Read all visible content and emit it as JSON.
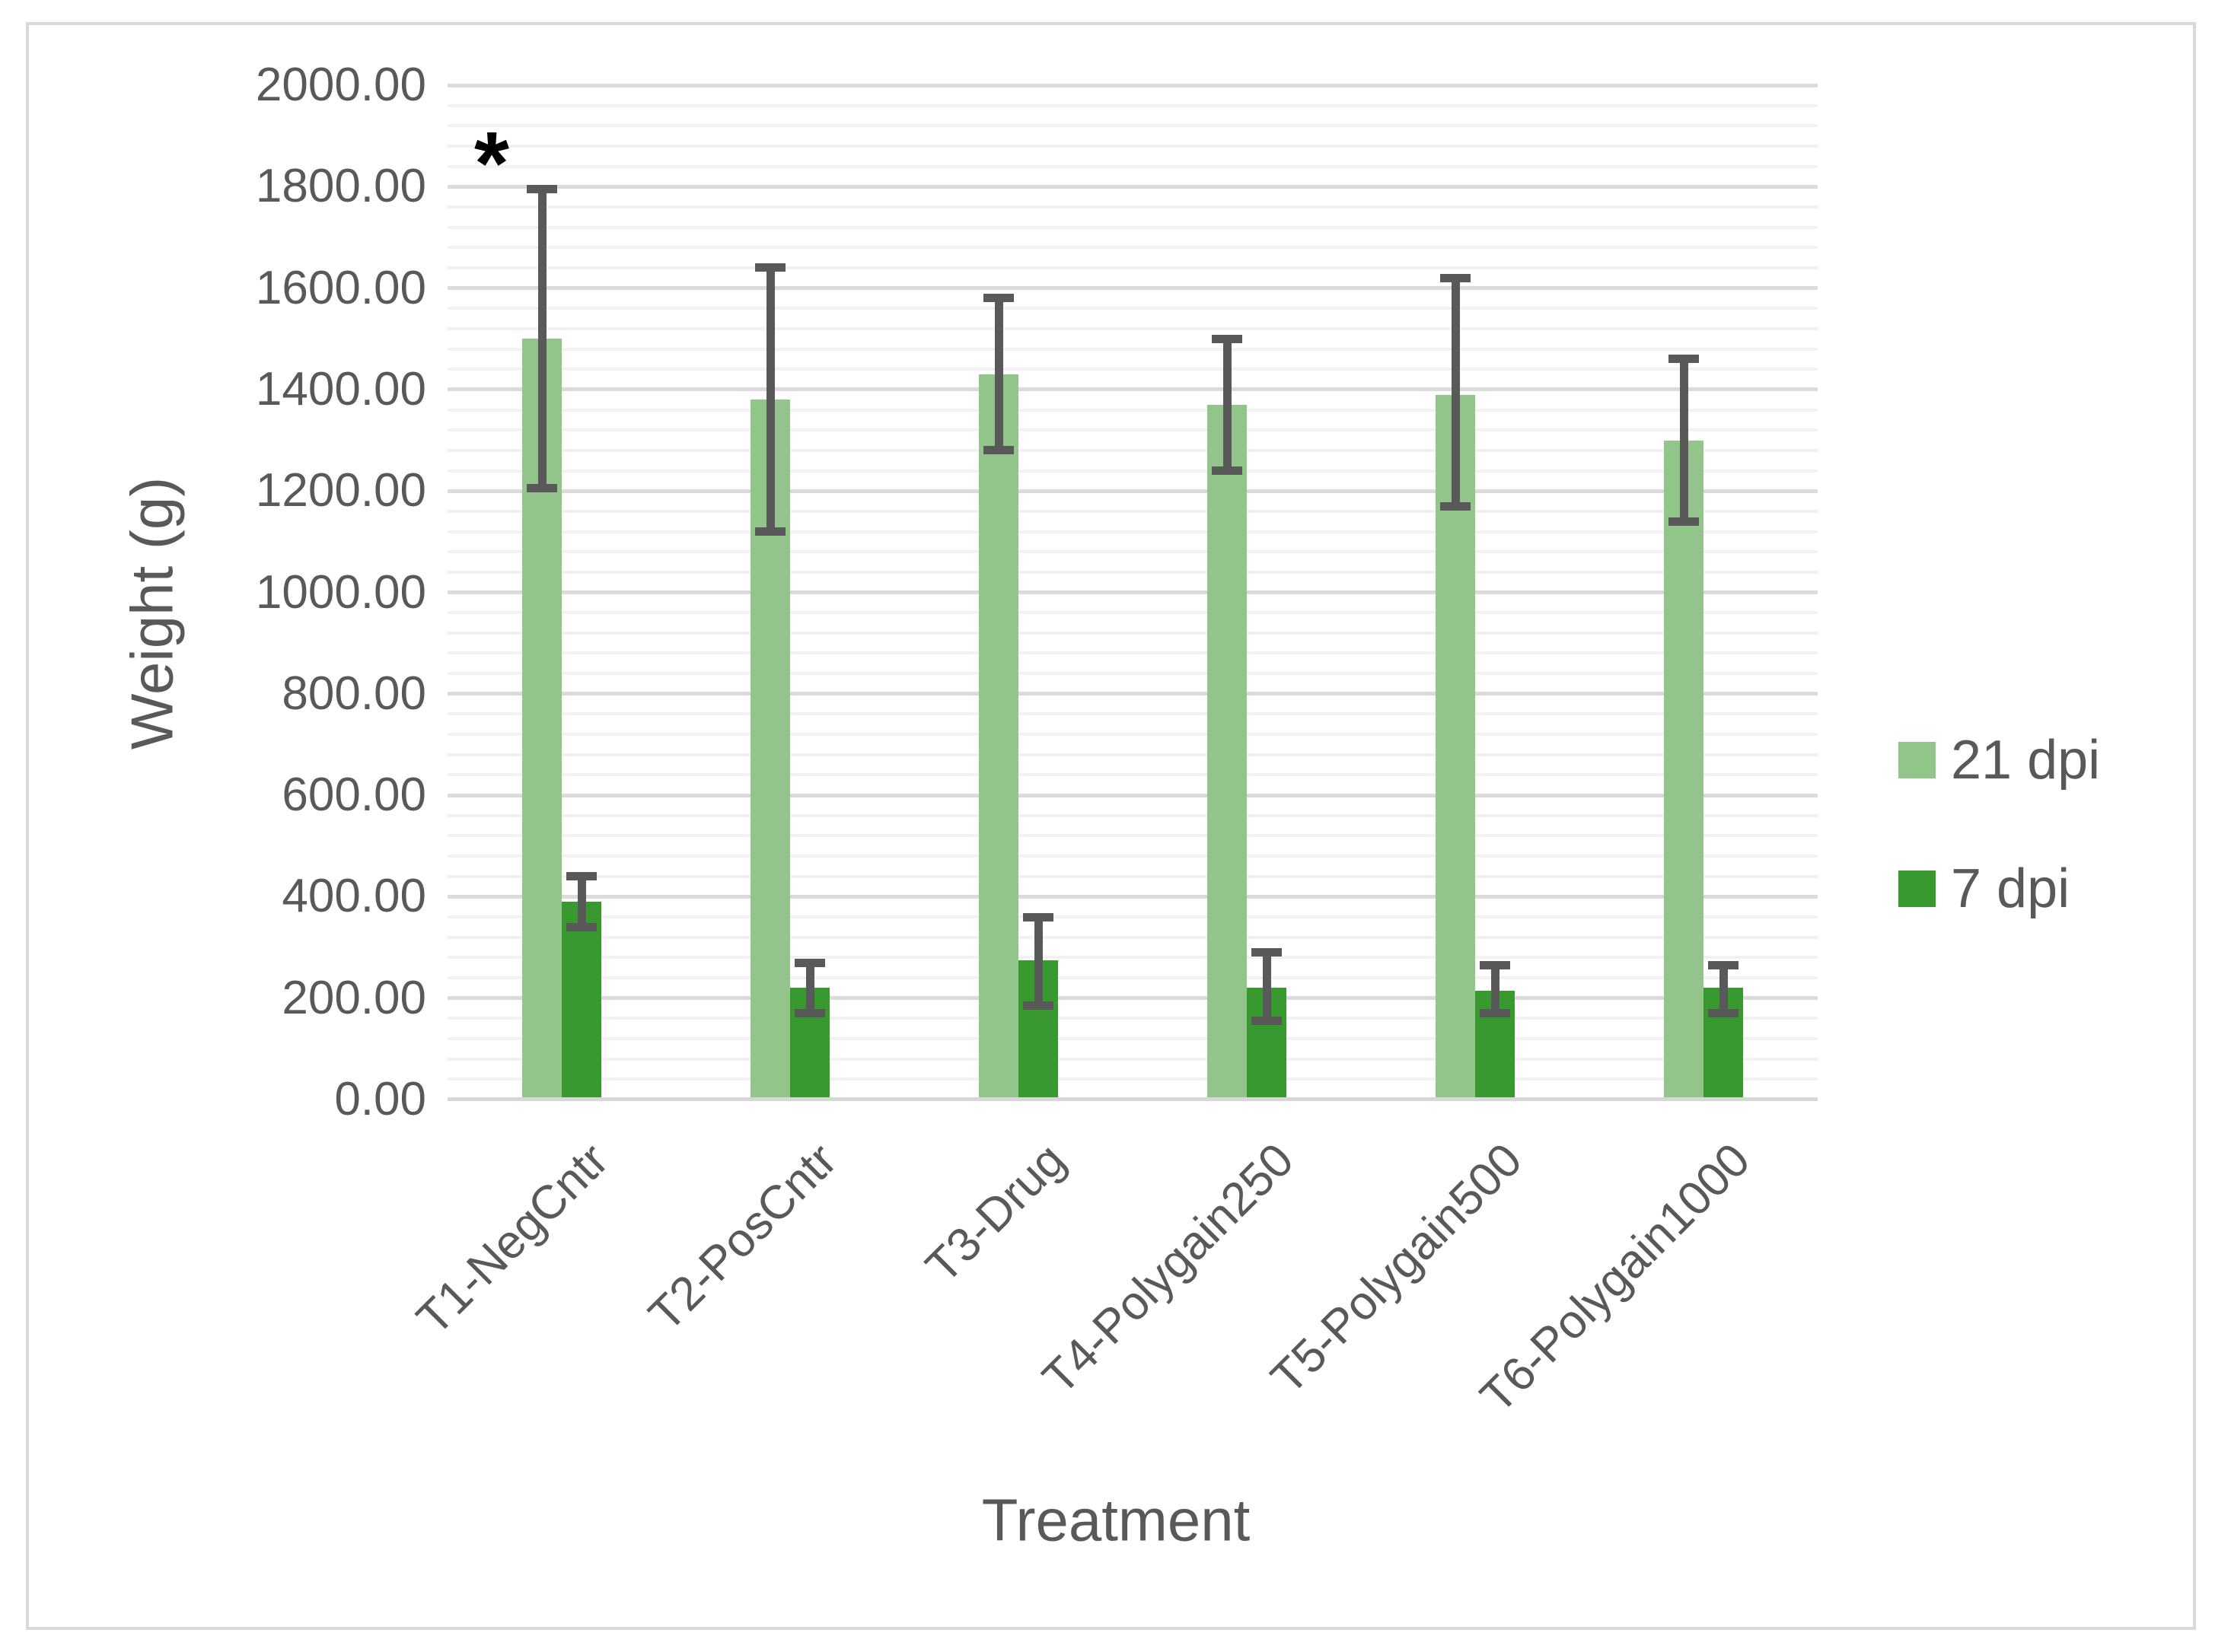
{
  "chart_data": {
    "type": "bar",
    "title": "",
    "xlabel": "Treatment",
    "ylabel": "Weight (g)",
    "ylim": [
      0,
      2000
    ],
    "y_major_unit": 200,
    "y_minor_unit": 40,
    "grid": "horizontal major and minor gridlines on",
    "legend_position": "right",
    "ytick_labels": [
      "0.00",
      "200.00",
      "400.00",
      "600.00",
      "800.00",
      "1000.00",
      "1200.00",
      "1400.00",
      "1600.00",
      "1800.00",
      "2000.00"
    ],
    "categories": [
      "T1-NegCntr",
      "T2-PosCntr",
      "T3-Drug",
      "T4-Polygain250",
      "T5-Polygain500",
      "T6-Polygain1000"
    ],
    "series": [
      {
        "name": "21 dpi",
        "color": "#91C58A",
        "values": [
          1500,
          1380,
          1430,
          1370,
          1390,
          1300
        ],
        "error_low": [
          1205,
          1120,
          1280,
          1240,
          1170,
          1140
        ],
        "error_high": [
          1795,
          1640,
          1580,
          1500,
          1620,
          1460
        ]
      },
      {
        "name": "7 dpi",
        "color": "#389A2E",
        "values": [
          390,
          220,
          275,
          220,
          215,
          220
        ],
        "error_low": [
          340,
          170,
          185,
          155,
          170,
          170
        ],
        "error_high": [
          440,
          270,
          360,
          290,
          265,
          265
        ]
      }
    ],
    "error_bar_color": "#595959",
    "annotation": {
      "text": "*",
      "category": "T1-NegCntr",
      "series": "21 dpi",
      "y_value": 1845
    }
  },
  "colors": {
    "text": "#595959",
    "major_grid": "#DBDBDB",
    "minor_grid": "#F2F2F2",
    "axis_line": "#D7D7D7",
    "frame_border": "#D9D9D9",
    "annotation": "#000000",
    "background": "#FFFFFF"
  }
}
